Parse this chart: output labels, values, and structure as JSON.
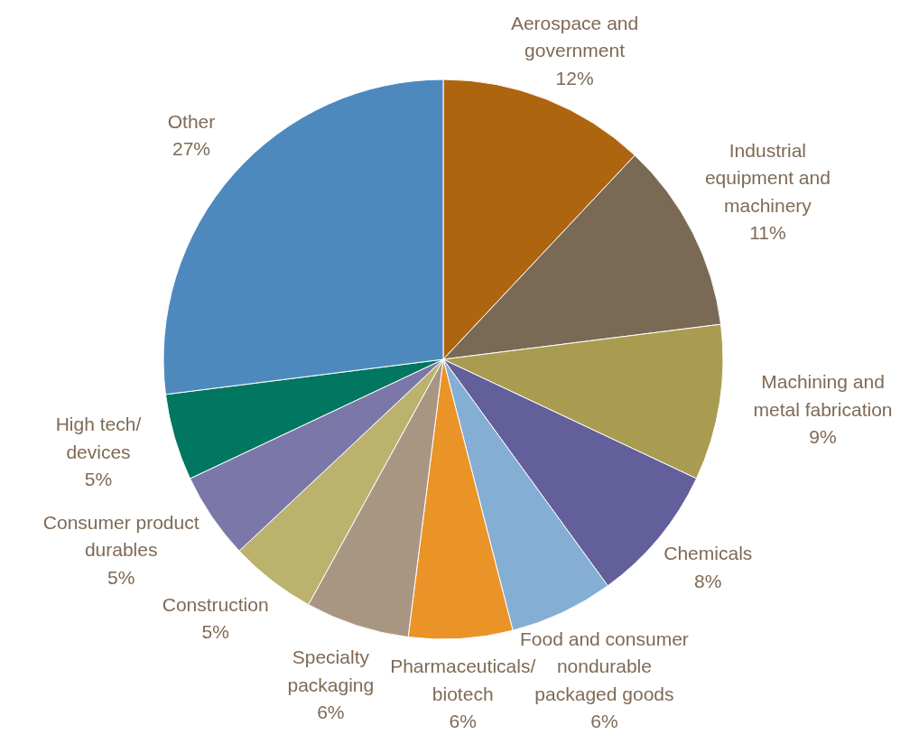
{
  "chart_data": {
    "type": "pie",
    "categories": [
      "Aerospace and government",
      "Industrial equipment and machinery",
      "Machining and metal fabrication",
      "Chemicals",
      "Food and consumer nondurable packaged goods",
      "Pharmaceuticals/ biotech",
      "Specialty packaging",
      "Construction",
      "Consumer product durables",
      "High tech/ devices",
      "Other"
    ],
    "values": [
      12,
      11,
      9,
      8,
      6,
      6,
      6,
      5,
      5,
      5,
      27
    ],
    "value_labels": [
      "12%",
      "11%",
      "9%",
      "8%",
      "6%",
      "6%",
      "6%",
      "5%",
      "5%",
      "5%",
      "27%"
    ],
    "colors": [
      "#ad6510",
      "#7a6a55",
      "#a99c50",
      "#635f9b",
      "#84aed3",
      "#ea9327",
      "#a89682",
      "#bbb26e",
      "#7b78a9",
      "#017661",
      "#4e89be"
    ]
  }
}
